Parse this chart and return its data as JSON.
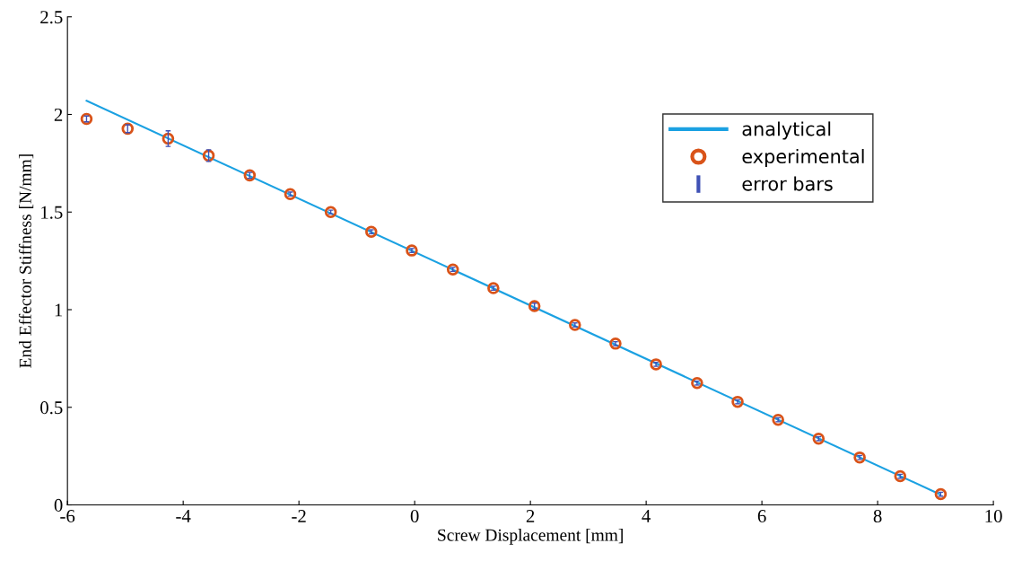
{
  "chart_data": {
    "type": "scatter",
    "xlabel": "Screw Displacement [mm]",
    "ylabel": "End Effector Stiffness [N/mm]",
    "xlim": [
      -6,
      10
    ],
    "ylim": [
      0,
      2.5
    ],
    "xticks": [
      -6,
      -4,
      -2,
      0,
      2,
      4,
      6,
      8,
      10
    ],
    "yticks": [
      0,
      0.5,
      1,
      1.5,
      2,
      2.5
    ],
    "grid": false,
    "legend": "top right",
    "series": [
      {
        "name": "analytical",
        "type": "line",
        "color": "#1ba1e2",
        "marker": "none",
        "x": [
          -5.67,
          9.07
        ],
        "values": [
          2.07,
          0.055
        ]
      },
      {
        "name": "experimental",
        "color": "#d95319",
        "marker": "circle",
        "x": [
          -5.67,
          -4.96,
          -4.26,
          -3.56,
          -2.85,
          -2.15,
          -1.45,
          -0.75,
          -0.05,
          0.66,
          1.36,
          2.07,
          2.77,
          3.47,
          4.17,
          4.88,
          5.58,
          6.28,
          6.98,
          7.69,
          8.39,
          9.09
        ],
        "values": [
          1.977,
          1.927,
          1.876,
          1.789,
          1.688,
          1.592,
          1.5,
          1.399,
          1.303,
          1.206,
          1.11,
          1.018,
          0.922,
          0.826,
          0.72,
          0.624,
          0.528,
          0.436,
          0.339,
          0.243,
          0.147,
          0.055
        ],
        "errors": [
          0.015,
          0.02,
          0.04,
          0.03,
          0.015,
          0.01,
          0.01,
          0.01,
          0.01,
          0.01,
          0.01,
          0.015,
          0.01,
          0.01,
          0.01,
          0.01,
          0.01,
          0.01,
          0.01,
          0.01,
          0.01,
          0.01
        ]
      },
      {
        "name": "error bars",
        "color": "#3f51b5"
      }
    ]
  }
}
